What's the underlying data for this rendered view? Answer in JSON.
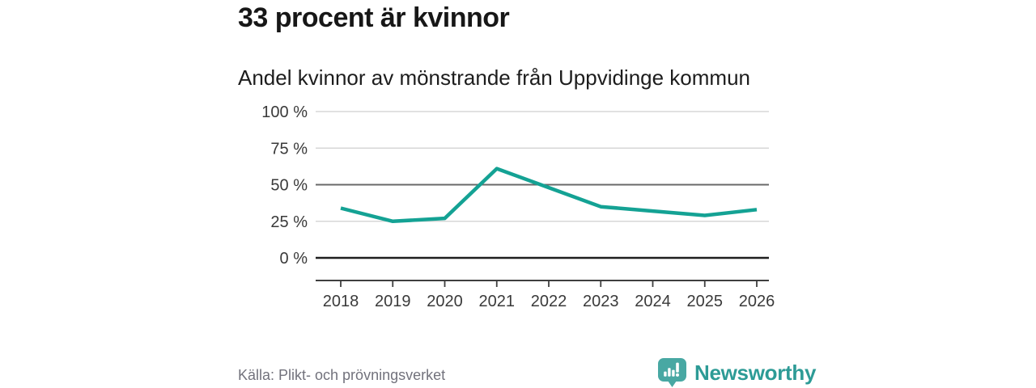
{
  "header": {
    "title": "33 procent är kvinnor",
    "subtitle": "Andel kvinnor av mönstrande från Uppvidinge kommun"
  },
  "chart_data": {
    "type": "line",
    "title": "33 procent är kvinnor",
    "subtitle": "Andel kvinnor av mönstrande från Uppvidinge kommun",
    "categories": [
      "2018",
      "2019",
      "2020",
      "2021",
      "2022",
      "2023",
      "2024",
      "2025",
      "2026"
    ],
    "values": [
      34,
      25,
      27,
      61,
      48,
      35,
      32,
      29,
      33
    ],
    "unit": "%",
    "ylim": [
      0,
      100
    ],
    "ytick_values": [
      0,
      25,
      50,
      75,
      100
    ],
    "ytick_labels": [
      "0 %",
      "25 %",
      "50 %",
      "75 %",
      "100 %"
    ],
    "grid": true,
    "emphasized_gridline": 50,
    "legend": "none",
    "line_color": "#14a294",
    "axis_text_color": "#3a3a3a"
  },
  "footer": {
    "source": "Källa: Plikt- och prövningsverket",
    "brand": {
      "name": "Newsworthy",
      "badge_color": "#48a8a3",
      "text_color": "#2d9b96",
      "icon": "bar-chart-exclamation-speech-bubble"
    }
  }
}
